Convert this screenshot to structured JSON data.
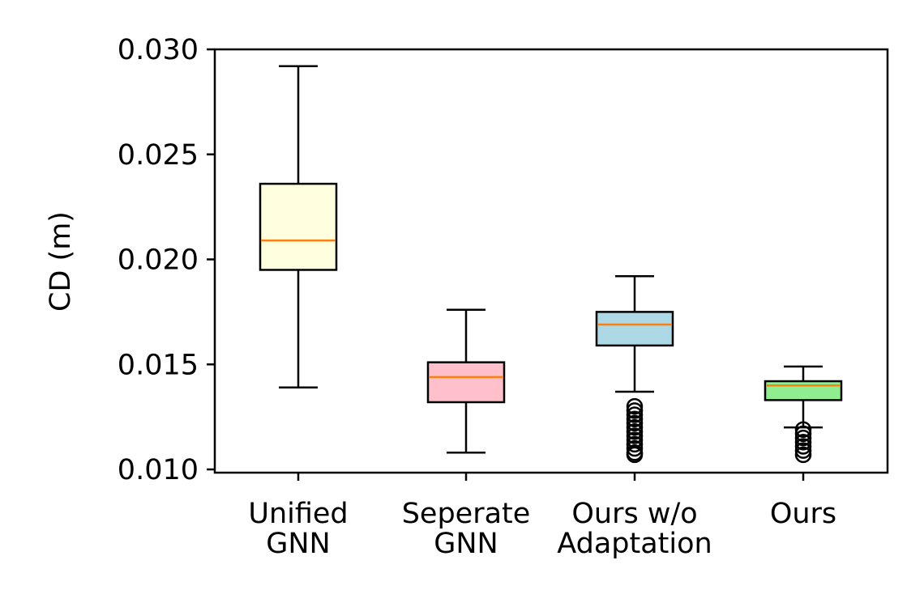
{
  "chart_data": {
    "type": "box",
    "ylabel": "CD (m)",
    "ylim": [
      0.01,
      0.03
    ],
    "yticks": [
      0.01,
      0.015,
      0.02,
      0.025,
      0.03
    ],
    "ytick_labels": [
      "0.010",
      "0.015",
      "0.020",
      "0.025",
      "0.030"
    ],
    "grid": false,
    "legend": "none",
    "median_color": "#ff7f0e",
    "categories": [
      [
        "Unified",
        "GNN"
      ],
      [
        "Seperate",
        "GNN"
      ],
      [
        "Ours w/o",
        "Adaptation"
      ],
      [
        "Ours"
      ]
    ],
    "boxes": [
      {
        "fill": "#ffffe0",
        "whisker_low": 0.0139,
        "q1": 0.0195,
        "median": 0.0209,
        "q3": 0.0236,
        "whisker_high": 0.0292,
        "outliers": []
      },
      {
        "fill": "#ffc0cb",
        "whisker_low": 0.0108,
        "q1": 0.0132,
        "median": 0.0144,
        "q3": 0.0151,
        "whisker_high": 0.0176,
        "outliers": []
      },
      {
        "fill": "#add8e6",
        "whisker_low": 0.0137,
        "q1": 0.0159,
        "median": 0.0169,
        "q3": 0.0175,
        "whisker_high": 0.0192,
        "outliers": [
          0.013,
          0.0128,
          0.0126,
          0.0124,
          0.0122,
          0.012,
          0.0118,
          0.0116,
          0.0114,
          0.0112,
          0.011,
          0.0108,
          0.0107
        ]
      },
      {
        "fill": "#90ee90",
        "whisker_low": 0.012,
        "q1": 0.0133,
        "median": 0.014,
        "q3": 0.0142,
        "whisker_high": 0.0149,
        "outliers": [
          0.0119,
          0.0117,
          0.0115,
          0.0113,
          0.0111,
          0.0109,
          0.0107
        ]
      }
    ]
  }
}
